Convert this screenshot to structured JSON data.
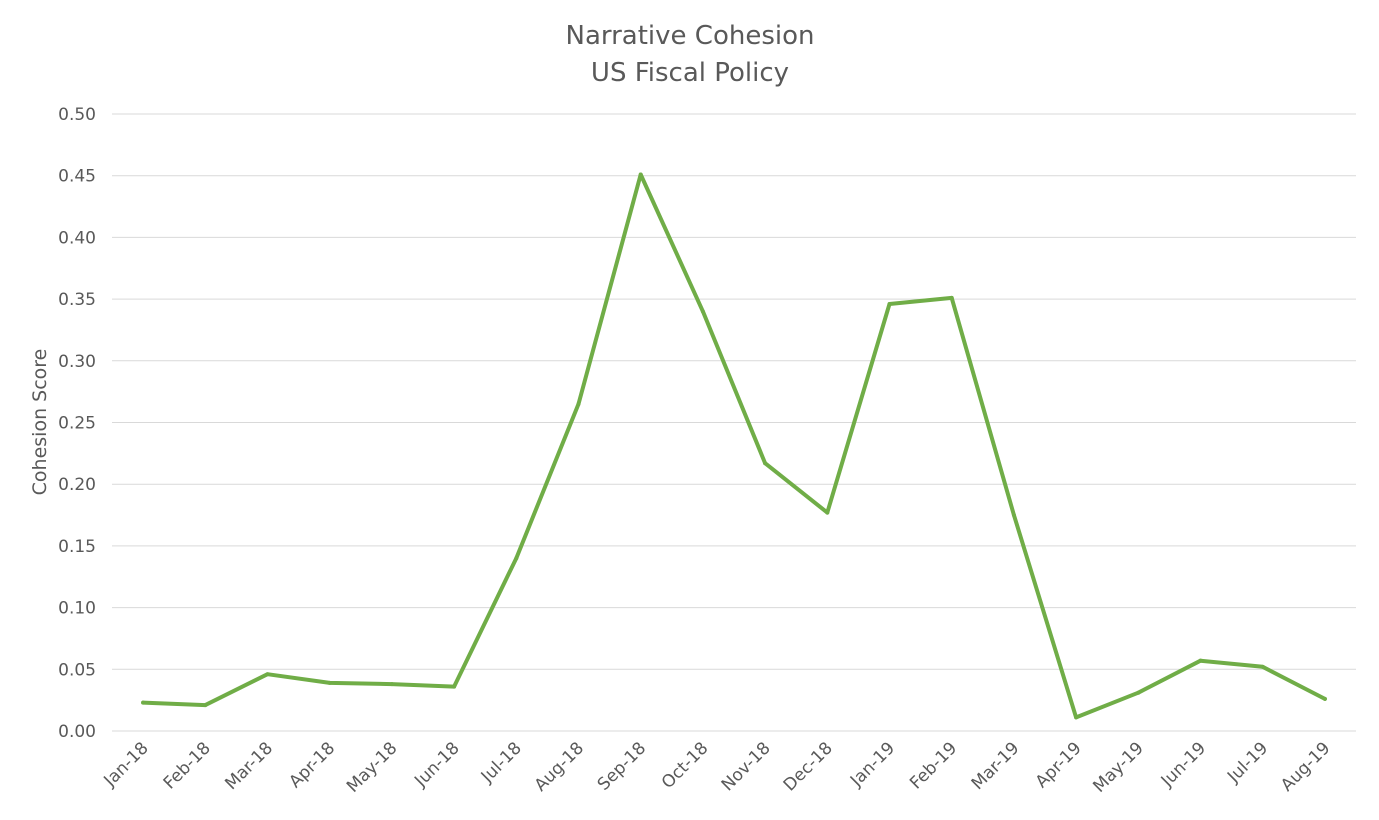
{
  "chart_data": {
    "type": "line",
    "title": "Narrative Cohesion",
    "subtitle": "US Fiscal Policy",
    "xlabel": "",
    "ylabel": "Cohesion Score",
    "ylim": [
      0,
      0.5
    ],
    "y_ticks": [
      "0.00",
      "0.05",
      "0.10",
      "0.15",
      "0.20",
      "0.25",
      "0.30",
      "0.35",
      "0.40",
      "0.45",
      "0.50"
    ],
    "grid": true,
    "legend": "none",
    "categories": [
      "Jan-18",
      "Feb-18",
      "Mar-18",
      "Apr-18",
      "May-18",
      "Jun-18",
      "Jul-18",
      "Aug-18",
      "Sep-18",
      "Oct-18",
      "Nov-18",
      "Dec-18",
      "Jan-19",
      "Feb-19",
      "Mar-19",
      "Apr-19",
      "May-19",
      "Jun-19",
      "Jul-19",
      "Aug-19"
    ],
    "series": [
      {
        "color": "#70ad47",
        "values": [
          0.023,
          0.021,
          0.046,
          0.039,
          0.038,
          0.036,
          0.14,
          0.265,
          0.451,
          0.34,
          0.217,
          0.177,
          0.346,
          0.351,
          0.175,
          0.011,
          0.031,
          0.057,
          0.052,
          0.026
        ]
      }
    ]
  }
}
